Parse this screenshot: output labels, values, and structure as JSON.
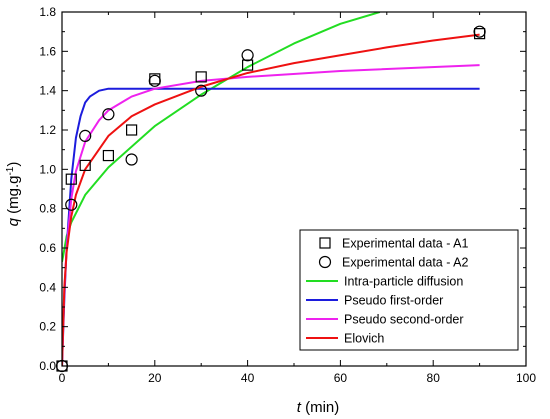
{
  "chart_data": {
    "type": "scatter",
    "xlabel": {
      "symbol": "t",
      "unit": " (min)"
    },
    "ylabel": {
      "symbol": "q",
      "unit_pre": " (mg.g",
      "unit_sup": "-1",
      "unit_post": ")"
    },
    "xlim": [
      0,
      100
    ],
    "ylim": [
      0,
      1.8
    ],
    "xticks": [
      "0",
      "20",
      "40",
      "60",
      "80",
      "100"
    ],
    "yticks": [
      "0.0",
      "0.2",
      "0.4",
      "0.6",
      "0.8",
      "1.0",
      "1.2",
      "1.4",
      "1.6",
      "1.8"
    ],
    "grid": false,
    "legend_position": "bottom-right",
    "legend": [
      {
        "label": "Experimental data - A1",
        "marker": "square"
      },
      {
        "label": "Experimental data - A2",
        "marker": "circle"
      },
      {
        "label": "Intra-particle diffusion",
        "color": "#22dd22"
      },
      {
        "label": "Pseudo first-order",
        "color": "#1c1cdd"
      },
      {
        "label": "Pseudo second-order",
        "color": "#ee22ee"
      },
      {
        "label": "Elovich",
        "color": "#ee1111"
      }
    ],
    "scatter_series": [
      {
        "marker": "square",
        "x": [
          0,
          2,
          5,
          10,
          15,
          20,
          30,
          40,
          90
        ],
        "y": [
          0.0,
          0.95,
          1.02,
          1.07,
          1.2,
          1.46,
          1.47,
          1.53,
          1.69
        ]
      },
      {
        "marker": "circle",
        "x": [
          0,
          2,
          5,
          10,
          15,
          20,
          30,
          40,
          90
        ],
        "y": [
          0.0,
          0.82,
          1.17,
          1.28,
          1.05,
          1.45,
          1.4,
          1.58,
          1.7
        ]
      }
    ],
    "line_series": [
      {
        "color": "#22dd22",
        "x": [
          0,
          0.25,
          1,
          2,
          5,
          10,
          20,
          30,
          40,
          50,
          60,
          68.5
        ],
        "y": [
          0.53,
          0.56,
          0.66,
          0.73,
          0.87,
          1.01,
          1.22,
          1.38,
          1.52,
          1.64,
          1.74,
          1.8
        ]
      },
      {
        "color": "#1c1cdd",
        "x": [
          0,
          0.5,
          1,
          2,
          3,
          4,
          5,
          6,
          8,
          10,
          15,
          90
        ],
        "y": [
          0.0,
          0.34,
          0.6,
          0.95,
          1.16,
          1.27,
          1.34,
          1.37,
          1.4,
          1.41,
          1.41,
          1.41
        ]
      },
      {
        "color": "#ee22ee",
        "x": [
          0,
          0.5,
          1,
          2,
          3,
          5,
          8,
          10,
          15,
          20,
          30,
          40,
          60,
          90
        ],
        "y": [
          0.0,
          0.38,
          0.6,
          0.85,
          0.99,
          1.14,
          1.25,
          1.3,
          1.37,
          1.41,
          1.45,
          1.47,
          1.5,
          1.53
        ]
      },
      {
        "color": "#ee1111",
        "x": [
          0,
          0.5,
          1,
          2,
          3,
          5,
          10,
          15,
          20,
          30,
          40,
          50,
          60,
          70,
          80,
          90
        ],
        "y": [
          0.0,
          0.4,
          0.58,
          0.76,
          0.87,
          1.0,
          1.17,
          1.27,
          1.33,
          1.42,
          1.49,
          1.54,
          1.58,
          1.62,
          1.655,
          1.685
        ]
      }
    ]
  }
}
